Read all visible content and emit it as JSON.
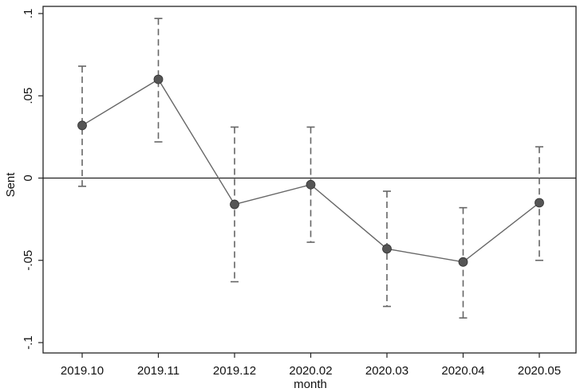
{
  "chart_data": {
    "type": "line",
    "title": "",
    "xlabel": "month",
    "ylabel": "Sent",
    "categories": [
      "2019.10",
      "2019.11",
      "2019.12",
      "2020.02",
      "2020.03",
      "2020.04",
      "2020.05"
    ],
    "ylim": [
      -0.1,
      0.1
    ],
    "yticks": [
      -0.1,
      -0.05,
      0,
      0.05,
      0.1
    ],
    "ytick_labels": [
      "-.1",
      "-.05",
      "0",
      ".05",
      ".1"
    ],
    "grid": false,
    "reference_line_y": 0,
    "series": [
      {
        "values": [
          0.032,
          0.06,
          -0.016,
          -0.004,
          -0.043,
          -0.051,
          -0.015
        ],
        "ci_lower": [
          -0.005,
          0.022,
          -0.063,
          -0.039,
          -0.078,
          -0.085,
          -0.05
        ],
        "ci_upper": [
          0.068,
          0.097,
          0.031,
          0.031,
          -0.008,
          -0.018,
          0.019
        ],
        "color": "#666666",
        "marker_color": "#555555"
      }
    ]
  }
}
